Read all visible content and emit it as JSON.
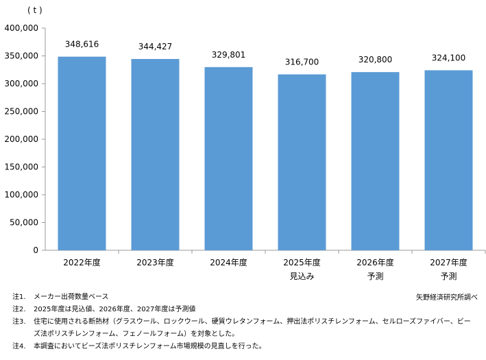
{
  "chart_data": {
    "type": "bar",
    "unit_label": "( t )",
    "categories": [
      [
        "2022年度"
      ],
      [
        "2023年度"
      ],
      [
        "2024年度"
      ],
      [
        "2025年度",
        "見込み"
      ],
      [
        "2026年度",
        "予測"
      ],
      [
        "2027年度",
        "予測"
      ]
    ],
    "values": [
      348616,
      344427,
      329801,
      316700,
      320800,
      324100
    ],
    "data_labels": [
      "348,616",
      "344,427",
      "329,801",
      "316,700",
      "320,800",
      "324,100"
    ],
    "ylim": [
      0,
      400000
    ],
    "yticks": [
      0,
      50000,
      100000,
      150000,
      200000,
      250000,
      300000,
      350000,
      400000
    ],
    "ytick_labels": [
      "0",
      "50,000",
      "100,000",
      "150,000",
      "200,000",
      "250,000",
      "300,000",
      "350,000",
      "400,000"
    ],
    "grid": false,
    "bar_color": "#5B9BD5"
  },
  "notes": [
    {
      "key": "注1.",
      "text": "メーカー出荷数量ベース"
    },
    {
      "key": "注2.",
      "text": "2025年度は見込値、2026年度、2027年度は予測値"
    },
    {
      "key": "注3.",
      "text": "住宅に使用される断熱材（グラスウール、ロックウール、硬質ウレタンフォーム、押出法ポリスチレンフォーム、セルローズファイバー、ビーズ法ポリスチレンフォーム、フェノールフォーム）を対象とした。"
    },
    {
      "key": "注4.",
      "text": "本調査においてビーズ法ポリスチレンフォーム市場規模の見直しを行った。"
    }
  ],
  "source": "矢野経済研究所調べ"
}
